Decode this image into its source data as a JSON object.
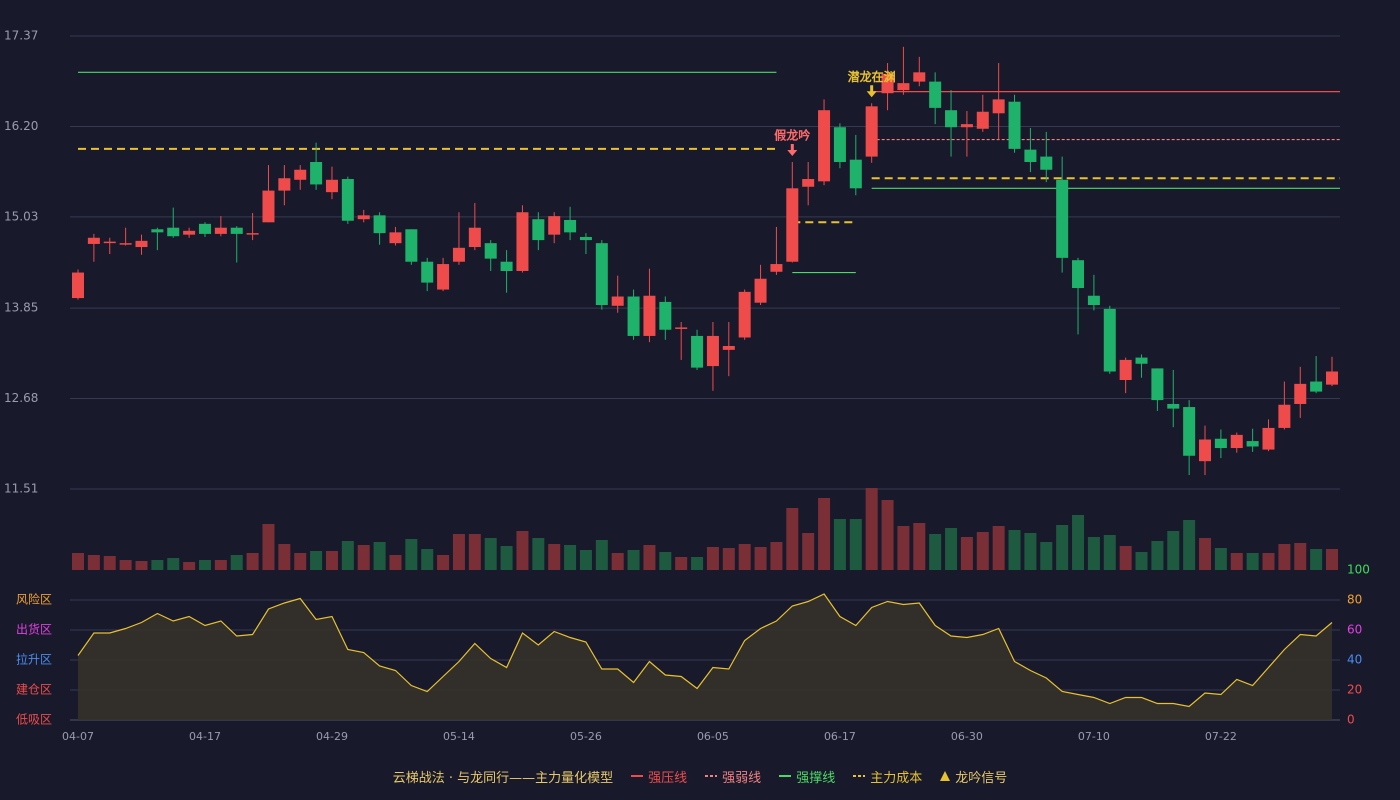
{
  "chart_data": {
    "type": "candlestick",
    "categories": [
      "04-07",
      null,
      null,
      null,
      null,
      null,
      null,
      null,
      "04-17",
      null,
      null,
      null,
      null,
      null,
      null,
      null,
      "04-29",
      null,
      null,
      null,
      null,
      null,
      null,
      null,
      "05-14",
      null,
      null,
      null,
      null,
      null,
      null,
      null,
      "05-26",
      null,
      null,
      null,
      null,
      null,
      null,
      null,
      "06-05",
      null,
      null,
      null,
      null,
      null,
      null,
      null,
      "06-17",
      null,
      null,
      null,
      null,
      null,
      null,
      null,
      "06-30",
      null,
      null,
      null,
      null,
      null,
      null,
      null,
      "07-10",
      null,
      null,
      null,
      null,
      null,
      null,
      null,
      "07-22",
      null,
      null,
      null,
      null,
      null,
      null,
      null
    ],
    "ylim": [
      11.51,
      17.37
    ],
    "yticks": [
      17.37,
      {
        "value": 16.2,
        "label": "16.20"
      },
      15.03,
      13.85,
      12.68,
      11.51
    ],
    "grid": true,
    "up_color": "#ef4b4b",
    "down_color": "#1fb26a",
    "ohlc": {
      "open": [
        13.98,
        14.68,
        14.71,
        14.68,
        14.64,
        14.87,
        14.89,
        14.8,
        14.94,
        14.81,
        14.89,
        14.82,
        14.96,
        15.37,
        15.51,
        15.74,
        15.35,
        15.52,
        15.0,
        15.05,
        14.69,
        14.87,
        14.45,
        14.09,
        14.45,
        14.64,
        14.69,
        14.45,
        14.33,
        15.0,
        14.8,
        14.99,
        14.77,
        14.69,
        13.88,
        14.0,
        13.49,
        13.93,
        13.6,
        13.49,
        13.1,
        13.31,
        13.47,
        13.92,
        14.32,
        14.45,
        15.42,
        15.49,
        16.19,
        15.77,
        15.81,
        16.63,
        16.67,
        16.78,
        16.78,
        16.41,
        16.19,
        16.17,
        16.37,
        16.52,
        15.9,
        15.81,
        15.51,
        14.47,
        14.01,
        13.84,
        12.92,
        13.21,
        13.07,
        12.61,
        12.57,
        11.87,
        12.16,
        12.04,
        12.13,
        12.02,
        12.3,
        12.61,
        12.9,
        12.86
      ],
      "close": [
        14.31,
        14.76,
        14.71,
        14.69,
        14.72,
        14.83,
        14.78,
        14.85,
        14.81,
        14.89,
        14.81,
        14.82,
        15.37,
        15.53,
        15.64,
        15.45,
        15.51,
        14.98,
        15.05,
        14.82,
        14.83,
        14.45,
        14.18,
        14.42,
        14.63,
        14.89,
        14.49,
        14.33,
        15.09,
        14.73,
        15.04,
        14.83,
        14.73,
        13.89,
        14.0,
        13.49,
        14.01,
        13.57,
        13.6,
        13.08,
        13.49,
        13.36,
        14.06,
        14.23,
        14.42,
        15.4,
        15.52,
        16.41,
        15.74,
        15.4,
        16.46,
        16.88,
        16.76,
        16.9,
        16.44,
        16.19,
        16.23,
        16.39,
        16.55,
        15.91,
        15.74,
        15.64,
        14.5,
        14.11,
        13.89,
        13.03,
        13.18,
        13.13,
        12.66,
        12.55,
        11.94,
        12.15,
        12.04,
        12.21,
        12.06,
        12.3,
        12.6,
        12.87,
        12.77,
        13.03
      ],
      "low": [
        13.96,
        14.45,
        14.55,
        14.66,
        14.54,
        14.6,
        14.76,
        14.76,
        14.77,
        14.78,
        14.44,
        14.73,
        14.96,
        15.18,
        15.38,
        15.38,
        15.26,
        14.94,
        14.96,
        14.67,
        14.66,
        14.41,
        14.07,
        14.07,
        14.41,
        14.6,
        14.33,
        14.05,
        14.31,
        14.6,
        14.69,
        14.73,
        14.55,
        13.83,
        13.79,
        13.44,
        13.41,
        13.44,
        13.18,
        13.05,
        12.78,
        12.97,
        13.44,
        13.89,
        14.28,
        14.44,
        15.18,
        15.44,
        15.66,
        15.31,
        15.73,
        16.41,
        16.61,
        16.72,
        16.23,
        15.81,
        15.81,
        16.13,
        16.03,
        15.86,
        15.61,
        15.48,
        14.31,
        13.51,
        13.82,
        13.0,
        12.75,
        12.95,
        12.52,
        12.31,
        11.69,
        11.69,
        11.91,
        11.98,
        11.99,
        12.0,
        12.28,
        12.43,
        12.75,
        12.84
      ],
      "high": [
        14.35,
        14.81,
        14.76,
        14.89,
        14.8,
        14.89,
        15.15,
        14.89,
        14.96,
        15.04,
        14.91,
        15.08,
        15.7,
        15.7,
        15.7,
        15.99,
        15.68,
        15.55,
        15.12,
        15.09,
        14.9,
        14.87,
        14.5,
        14.5,
        15.09,
        15.21,
        14.73,
        14.6,
        15.18,
        15.09,
        15.09,
        15.16,
        14.82,
        14.73,
        14.27,
        14.09,
        14.36,
        14.0,
        13.67,
        13.57,
        13.67,
        13.67,
        14.09,
        14.41,
        14.9,
        15.74,
        15.74,
        16.55,
        16.24,
        16.09,
        16.5,
        17.02,
        17.23,
        17.1,
        16.9,
        16.67,
        16.4,
        16.61,
        17.02,
        16.61,
        16.18,
        16.13,
        15.81,
        14.5,
        14.28,
        13.88,
        13.21,
        13.25,
        13.07,
        13.05,
        12.66,
        12.33,
        12.28,
        12.24,
        12.29,
        12.41,
        12.9,
        13.09,
        13.23,
        13.22
      ]
    },
    "volume": {
      "up_color": "#7a2e36",
      "down_color": "#1d5a40",
      "ylim": [
        0,
        82
      ],
      "values": [
        17,
        15,
        14,
        10,
        9,
        10,
        12,
        8,
        10,
        10,
        15,
        17,
        46,
        26,
        17,
        19,
        19,
        29,
        25,
        28,
        15,
        31,
        21,
        15,
        36,
        36,
        32,
        24,
        39,
        32,
        26,
        25,
        20,
        30,
        17,
        20,
        25,
        18,
        13,
        13,
        23,
        22,
        26,
        23,
        28,
        62,
        37,
        72,
        51,
        51,
        82,
        70,
        44,
        47,
        36,
        42,
        33,
        38,
        44,
        40,
        37,
        28,
        45,
        55,
        33,
        35,
        24,
        18,
        29,
        39,
        50,
        32,
        22,
        17,
        17,
        17,
        26,
        27,
        21,
        21
      ]
    },
    "oscillator": {
      "color": "#e8c12f",
      "fill": "#35312a",
      "values": [
        43,
        58,
        58,
        61,
        65,
        71,
        66,
        69,
        63,
        66,
        56,
        57,
        74,
        78,
        81,
        67,
        69,
        47,
        45,
        36,
        33,
        23,
        19,
        29,
        39,
        51,
        41,
        35,
        58,
        50,
        59,
        55,
        52,
        34,
        34,
        25,
        39,
        30,
        29,
        21,
        35,
        34,
        53,
        61,
        66,
        76,
        79,
        84,
        69,
        63,
        75,
        79,
        77,
        78,
        63,
        56,
        55,
        57,
        61,
        39,
        33,
        28,
        19,
        17,
        15,
        11,
        15,
        15,
        11,
        11,
        9,
        18,
        17,
        27,
        23,
        35,
        47,
        57,
        56,
        65
      ],
      "y2lim": [
        0,
        100
      ],
      "y2ticks": [
        0,
        20,
        40,
        60,
        80,
        100
      ],
      "y2tick_colors": [
        "#ef4b4b",
        "#ef4b4b",
        "#4a8cf0",
        "#e040e0",
        "#f0a030",
        "#3ddc5a"
      ],
      "zones": [
        {
          "label": "风险区",
          "value": 80,
          "color": "#f0a030"
        },
        {
          "label": "出货区",
          "value": 60,
          "color": "#e040e0"
        },
        {
          "label": "拉升区",
          "value": 40,
          "color": "#4a8cf0"
        },
        {
          "label": "建仓区",
          "value": 20,
          "color": "#ef4b4b"
        },
        {
          "label": "低吸区",
          "value": 0,
          "color": "#ef4b4b"
        }
      ]
    },
    "legend_title": "云梯战法 · 与龙同行——主力量化模型",
    "legend_title_color": "#e8c86a",
    "legend": [
      {
        "name": "强压线",
        "color": "#ef4b4b",
        "style": "solid",
        "lines": [
          {
            "value": 16.65,
            "from": 50,
            "to": 80
          }
        ]
      },
      {
        "name": "强弱线",
        "color": "#f08080",
        "style": "dotted",
        "lines": [
          {
            "value": 16.03,
            "from": 50,
            "to": 80
          }
        ]
      },
      {
        "name": "强撑线",
        "color": "#4cd964",
        "style": "solid",
        "lines": [
          {
            "value": 16.9,
            "from": 0,
            "to": 44
          },
          {
            "value": 14.31,
            "from": 45,
            "to": 49
          },
          {
            "value": 15.4,
            "from": 50,
            "to": 80
          }
        ]
      },
      {
        "name": "主力成本",
        "color": "#e8c12f",
        "style": "dashed",
        "lines": [
          {
            "value": 15.91,
            "from": 0,
            "to": 44
          },
          {
            "value": 14.96,
            "from": 45,
            "to": 49
          },
          {
            "value": 15.53,
            "from": 50,
            "to": 80
          }
        ]
      }
    ],
    "signal_legend": {
      "name": "龙吟信号",
      "color": "#e8c12f"
    },
    "signals": [
      {
        "label": "假龙吟",
        "index": 45,
        "value": 15.74,
        "color": "#ff6b6b"
      },
      {
        "label": "潜龙在渊",
        "index": 50,
        "value": 16.5,
        "color": "#e8c12f"
      }
    ]
  }
}
